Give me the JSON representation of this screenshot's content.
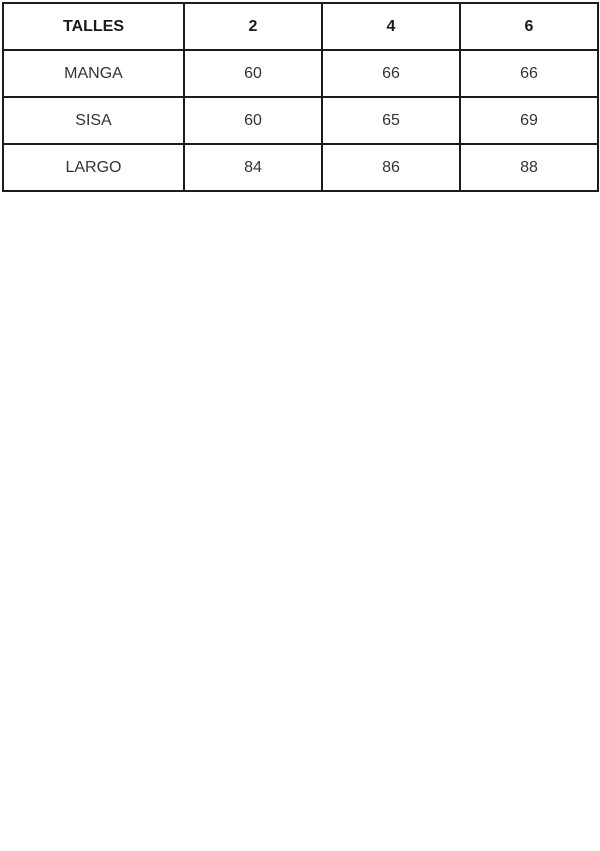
{
  "table": {
    "headers": [
      "TALLES",
      "2",
      "4",
      "6"
    ],
    "rows": [
      {
        "label": "MANGA",
        "values": [
          "60",
          "66",
          "66"
        ]
      },
      {
        "label": "SISA",
        "values": [
          "60",
          "65",
          "69"
        ]
      },
      {
        "label": "LARGO",
        "values": [
          "84",
          "86",
          "88"
        ]
      }
    ]
  },
  "chart_data": {
    "type": "table",
    "title": "",
    "columns": [
      "TALLES",
      "2",
      "4",
      "6"
    ],
    "rows": [
      [
        "MANGA",
        60,
        66,
        66
      ],
      [
        "SISA",
        60,
        65,
        69
      ],
      [
        "LARGO",
        84,
        86,
        88
      ]
    ]
  },
  "colors": {
    "border": "#1c1c1c",
    "header_text": "#1a1a1a",
    "body_text": "#333333",
    "background": "#ffffff"
  }
}
